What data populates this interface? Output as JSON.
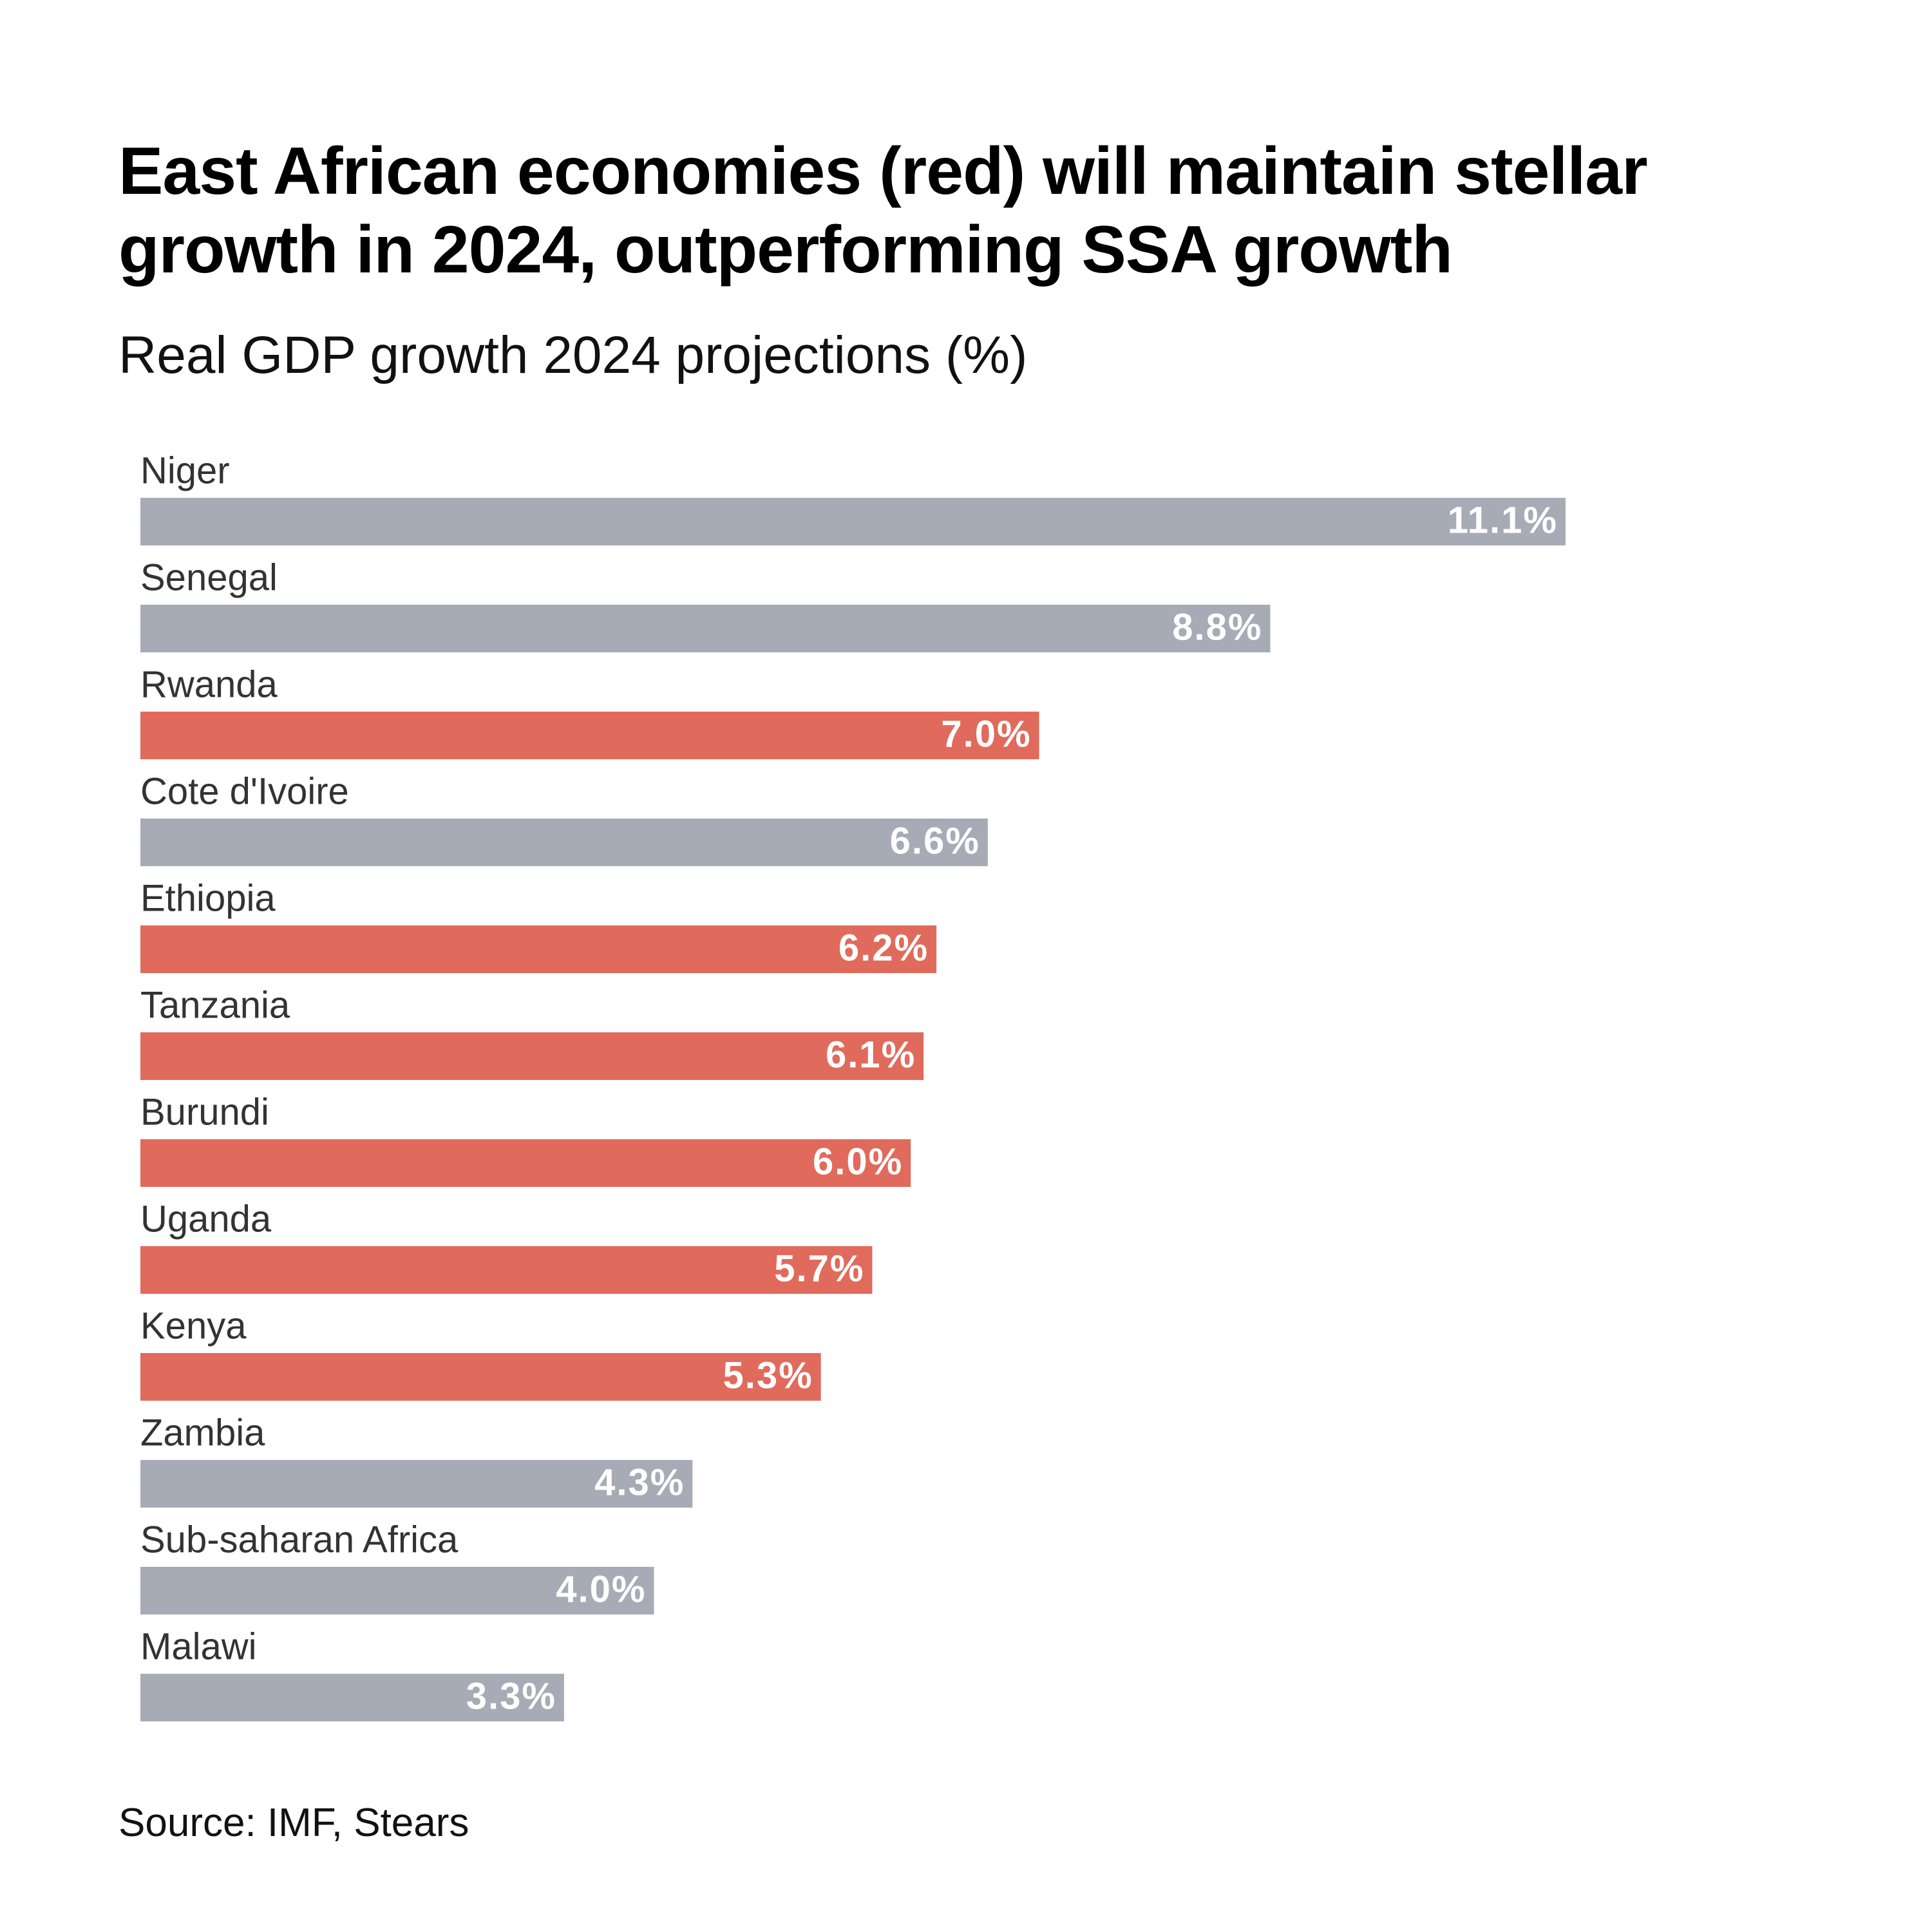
{
  "chart_data": {
    "type": "bar",
    "orientation": "horizontal",
    "title": "East African economies (red) will maintain stellar growth in 2024, outperforming SSA growth",
    "subtitle": "Real GDP growth 2024 projections (%)",
    "source": "Source: IMF, Stears",
    "categories": [
      "Niger",
      "Senegal",
      "Rwanda",
      "Cote d'Ivoire",
      "Ethiopia",
      "Tanzania",
      "Burundi",
      "Uganda",
      "Kenya",
      "Zambia",
      "Sub-saharan Africa",
      "Malawi"
    ],
    "values": [
      11.1,
      8.8,
      7.0,
      6.6,
      6.2,
      6.1,
      6.0,
      5.7,
      5.3,
      4.3,
      4.0,
      3.3
    ],
    "value_labels": [
      "11.1%",
      "8.8%",
      "7.0%",
      "6.6%",
      "6.2%",
      "6.1%",
      "6.0%",
      "5.7%",
      "5.3%",
      "4.3%",
      "4.0%",
      "3.3%"
    ],
    "colors": [
      "#a7abb5",
      "#a7abb5",
      "#e06b5c",
      "#a7abb5",
      "#e06b5c",
      "#e06b5c",
      "#e06b5c",
      "#e06b5c",
      "#e06b5c",
      "#a7abb5",
      "#a7abb5",
      "#a7abb5"
    ]
  }
}
